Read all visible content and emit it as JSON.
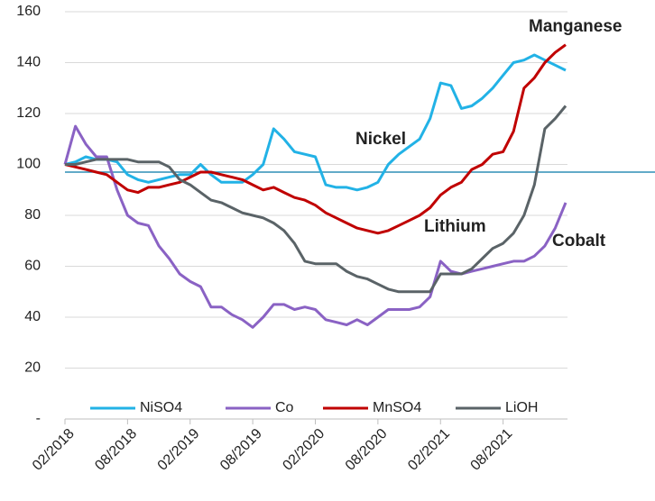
{
  "chart_data": {
    "type": "line",
    "x": [
      "02/2018",
      "03/2018",
      "04/2018",
      "05/2018",
      "06/2018",
      "07/2018",
      "08/2018",
      "09/2018",
      "10/2018",
      "11/2018",
      "12/2018",
      "01/2019",
      "02/2019",
      "03/2019",
      "04/2019",
      "05/2019",
      "06/2019",
      "07/2019",
      "08/2019",
      "09/2019",
      "10/2019",
      "11/2019",
      "12/2019",
      "01/2020",
      "02/2020",
      "03/2020",
      "04/2020",
      "05/2020",
      "06/2020",
      "07/2020",
      "08/2020",
      "09/2020",
      "10/2020",
      "11/2020",
      "12/2020",
      "01/2021",
      "02/2021",
      "03/2021",
      "04/2021",
      "05/2021",
      "06/2021",
      "07/2021",
      "08/2021",
      "09/2021",
      "10/2021",
      "11/2021",
      "12/2021",
      "01/2022",
      "02/2022"
    ],
    "xticks": [
      "02/2018",
      "08/2018",
      "02/2019",
      "08/2019",
      "02/2020",
      "08/2020",
      "02/2021",
      "08/2021"
    ],
    "ylim": [
      0,
      160
    ],
    "yticks": [
      {
        "value": 0,
        "label": "-"
      },
      20,
      40,
      60,
      80,
      100,
      120,
      140,
      160
    ],
    "grid": true,
    "reference_line": {
      "value": 97,
      "color": "#2e8fb5"
    },
    "series": [
      {
        "name": "NiSO4",
        "color": "#22b2e6",
        "values": [
          100,
          101,
          103,
          102,
          102,
          101,
          96,
          94,
          93,
          94,
          95,
          96,
          96,
          100,
          96,
          93,
          93,
          93,
          96,
          100,
          114,
          110,
          105,
          104,
          103,
          92,
          91,
          91,
          90,
          91,
          93,
          100,
          104,
          107,
          110,
          118,
          132,
          131,
          122,
          123,
          126,
          130,
          135,
          140,
          141,
          143,
          141,
          139,
          137
        ]
      },
      {
        "name": "Co",
        "color": "#8a62c4",
        "values": [
          100,
          115,
          108,
          103,
          103,
          90,
          80,
          77,
          76,
          68,
          63,
          57,
          54,
          52,
          44,
          44,
          41,
          39,
          36,
          40,
          45,
          45,
          43,
          44,
          43,
          39,
          38,
          37,
          39,
          37,
          40,
          43,
          43,
          43,
          44,
          48,
          62,
          58,
          57,
          58,
          59,
          60,
          61,
          62,
          62,
          64,
          68,
          75,
          85
        ]
      },
      {
        "name": "MnSO4",
        "color": "#c00000",
        "values": [
          100,
          99,
          98,
          97,
          96,
          93,
          90,
          89,
          91,
          91,
          92,
          93,
          95,
          97,
          97,
          96,
          95,
          94,
          92,
          90,
          91,
          89,
          87,
          86,
          84,
          81,
          79,
          77,
          75,
          74,
          73,
          74,
          76,
          78,
          80,
          83,
          88,
          91,
          93,
          98,
          100,
          104,
          105,
          113,
          130,
          134,
          140,
          144,
          147
        ]
      },
      {
        "name": "LiOH",
        "color": "#5a6367",
        "values": [
          100,
          100,
          101,
          102,
          102,
          102,
          102,
          101,
          101,
          101,
          99,
          94,
          92,
          89,
          86,
          85,
          83,
          81,
          80,
          79,
          77,
          74,
          69,
          62,
          61,
          61,
          61,
          58,
          56,
          55,
          53,
          51,
          50,
          50,
          50,
          50,
          57,
          57,
          57,
          59,
          63,
          67,
          69,
          73,
          80,
          92,
          114,
          118,
          123
        ]
      }
    ],
    "annotations": [
      {
        "text": "Manganese",
        "color": "#c00000"
      },
      {
        "text": "Nickel",
        "color": "#22b2e6"
      },
      {
        "text": "Lithium",
        "color": "#000000"
      },
      {
        "text": "Cobalt",
        "color": "#8a62c4"
      }
    ]
  }
}
